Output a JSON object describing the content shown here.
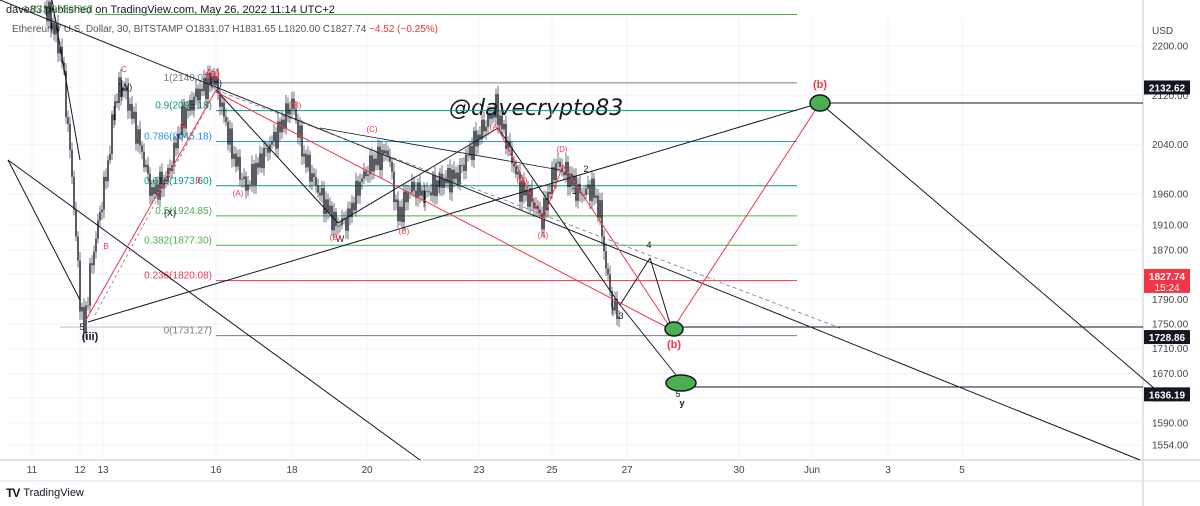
{
  "header": {
    "publisher_line": "dave83 published on TradingView.com, May 26, 2022 11:14 UTC+2",
    "symbol_line": "Ethereum / U.S. Dollar, 30, BITSTAMP O1831.07 H1831.65 L1820.00 C1827.74",
    "change": "−4.52 (−0.25%)"
  },
  "watermark": "@davecrypto83",
  "footer": {
    "brand": "TradingView",
    "logo": "TV"
  },
  "chart_data": {
    "type": "line",
    "title": "Ethereum / U.S. Dollar, 30, BITSTAMP",
    "unit_label": "USD",
    "ohlc": {
      "open": 1831.07,
      "high": 1831.65,
      "low": 1820.0,
      "close": 1827.74
    },
    "x_ticks": [
      "11",
      "12",
      "13",
      "16",
      "18",
      "20",
      "23",
      "25",
      "27",
      "30",
      "Jun",
      "3",
      "5"
    ],
    "y_ticks": [
      2200,
      2120,
      2040,
      1960,
      1910,
      1870,
      1830,
      1790,
      1750,
      1710,
      1670,
      1630,
      1590,
      1554
    ],
    "ylim": [
      1530,
      2245
    ],
    "fib_levels": [
      {
        "label": "1(2140.07)",
        "value": 2140.07,
        "color": "#787b86"
      },
      {
        "label": "0.9(2095.18)",
        "value": 2095.18,
        "color": "#089981"
      },
      {
        "label": "0.786(2045.18)",
        "value": 2045.18,
        "color": "#2196f3"
      },
      {
        "label": "0.618(1973.60)",
        "value": 1973.6,
        "color": "#089981"
      },
      {
        "label": "0.5(1924.85)",
        "value": 1924.85,
        "color": "#4caf50"
      },
      {
        "label": "0.382(1877.30)",
        "value": 1877.3,
        "color": "#4caf50"
      },
      {
        "label": "0.236(1820.08)",
        "value": 1820.08,
        "color": "#f23645"
      },
      {
        "label": "0(1731.27)",
        "value": 1731.27,
        "color": "#787b86"
      },
      {
        "label": "1.272(2250.76)",
        "value": 2250.76,
        "color": "#4caf50"
      }
    ],
    "price_labels": [
      {
        "text": "2132.62",
        "value": 2132.62,
        "bg": "#131722"
      },
      {
        "text": "1827.74",
        "value": 1827.74,
        "bg": "#f23645",
        "sub": "15:24"
      },
      {
        "text": "1728.86",
        "value": 1728.86,
        "bg": "#131722"
      },
      {
        "text": "1636.19",
        "value": 1636.19,
        "bg": "#131722"
      }
    ],
    "wave_labels_black": [
      "(W)",
      "(Y)",
      "(X)",
      "W",
      "(iii)",
      "5",
      "2",
      "1",
      "3",
      "4",
      "5",
      "y"
    ],
    "wave_labels_red": [
      "(a)",
      "(b)",
      "(b)",
      "A",
      "B",
      "C",
      "B",
      "(A)",
      "(B)",
      "(C)",
      "(A)",
      "(B)",
      "(C)",
      "(D)",
      "(A)",
      "(B)"
    ],
    "grid": true
  }
}
